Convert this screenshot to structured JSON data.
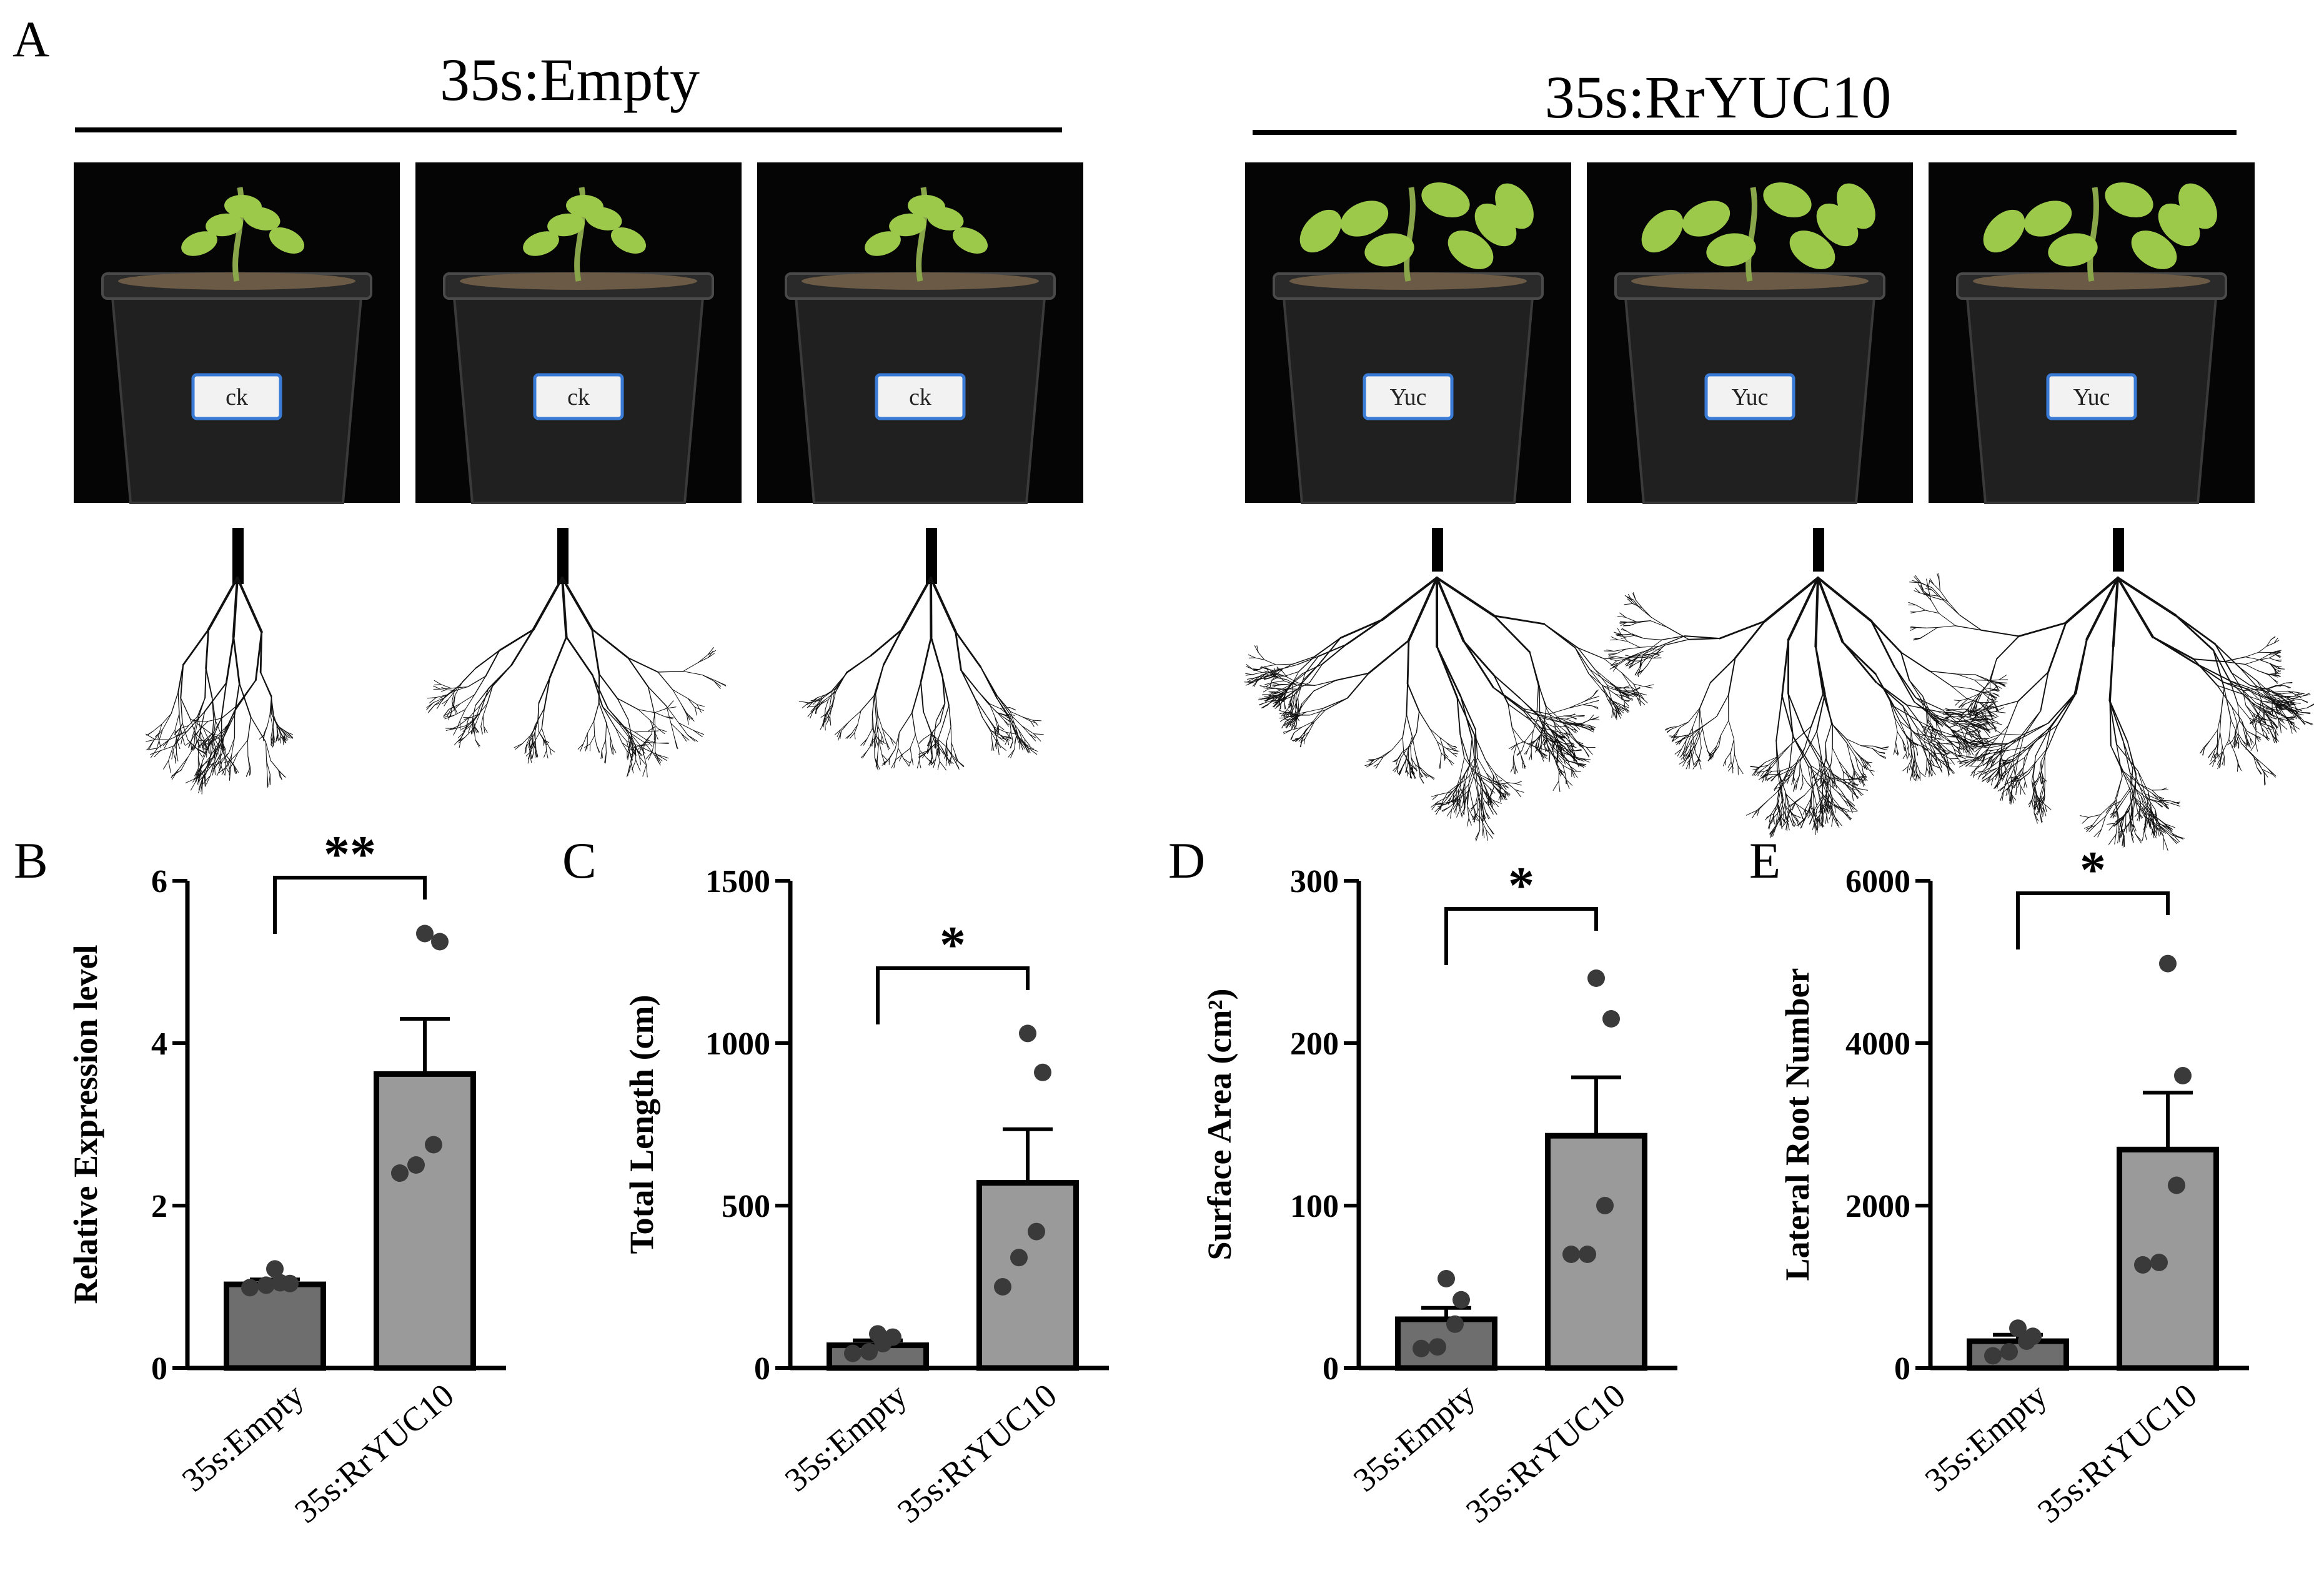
{
  "figure": {
    "panel_a": {
      "letter": "A",
      "groups": [
        {
          "title": "35s:Empty",
          "pot_labels": [
            "ck",
            "ck",
            "ck"
          ]
        },
        {
          "title": "35s:RrYUC10",
          "pot_labels": [
            "Yuc",
            "Yuc",
            "Yuc"
          ]
        }
      ]
    }
  },
  "colors": {
    "empty_bar": "#6e6e6e",
    "yuc_bar": "#9a9a9a",
    "dot": "#3a3a3a",
    "photo_bg": "#050505",
    "pot": "#202020",
    "leaf": "#9cc94a"
  },
  "chart_data": [
    {
      "panel": "B",
      "type": "bar",
      "categories": [
        "35s:Empty",
        "35s:RrYUC10"
      ],
      "values": [
        1.03,
        3.62
      ],
      "errors": [
        0.06,
        0.68
      ],
      "points": [
        [
          0.99,
          1.02,
          1.05,
          1.04,
          1.22
        ],
        [
          2.4,
          2.5,
          2.75,
          5.25,
          5.35
        ]
      ],
      "ylabel": "Relative Expression level",
      "ylim": [
        0,
        6
      ],
      "yticks": [
        0,
        2,
        4,
        6
      ],
      "significance": "**"
    },
    {
      "panel": "C",
      "type": "bar",
      "categories": [
        "35s:Empty",
        "35s:RrYUC10"
      ],
      "values": [
        70,
        570
      ],
      "errors": [
        15,
        165
      ],
      "points": [
        [
          45,
          50,
          75,
          95,
          105
        ],
        [
          250,
          340,
          420,
          910,
          1030
        ]
      ],
      "ylabel": "Total Length (cm)",
      "ylim": [
        0,
        1500
      ],
      "yticks": [
        0,
        500,
        1000,
        1500
      ],
      "significance": "*"
    },
    {
      "panel": "D",
      "type": "bar",
      "categories": [
        "35s:Empty",
        "35s:RrYUC10"
      ],
      "values": [
        30,
        143
      ],
      "errors": [
        7,
        36
      ],
      "points": [
        [
          12,
          13,
          27,
          42,
          55
        ],
        [
          70,
          70,
          100,
          215,
          240
        ]
      ],
      "ylabel": "Surface Area (cm²)",
      "ylim": [
        0,
        300
      ],
      "yticks": [
        0,
        100,
        200,
        300
      ],
      "significance": "*"
    },
    {
      "panel": "E",
      "type": "bar",
      "categories": [
        "35s:Empty",
        "35s:RrYUC10"
      ],
      "values": [
        330,
        2690
      ],
      "errors": [
        80,
        700
      ],
      "points": [
        [
          150,
          200,
          330,
          390,
          490
        ],
        [
          1270,
          1300,
          2250,
          3600,
          4980
        ]
      ],
      "ylabel": "Lateral Root Number",
      "ylim": [
        0,
        6000
      ],
      "yticks": [
        0,
        2000,
        4000,
        6000
      ],
      "significance": "*"
    }
  ]
}
